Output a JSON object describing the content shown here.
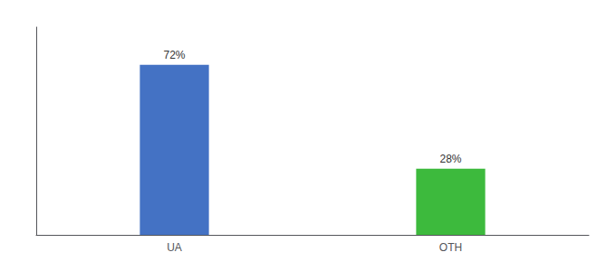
{
  "chart_data": {
    "type": "bar",
    "categories": [
      "UA",
      "OTH"
    ],
    "values": [
      72,
      28
    ],
    "value_labels": [
      "72%",
      "28%"
    ],
    "colors": [
      "#4472c4",
      "#3dba3d"
    ],
    "ylim": [
      0,
      88
    ],
    "data_labels": true,
    "tick_labels": "x",
    "grid": false
  }
}
